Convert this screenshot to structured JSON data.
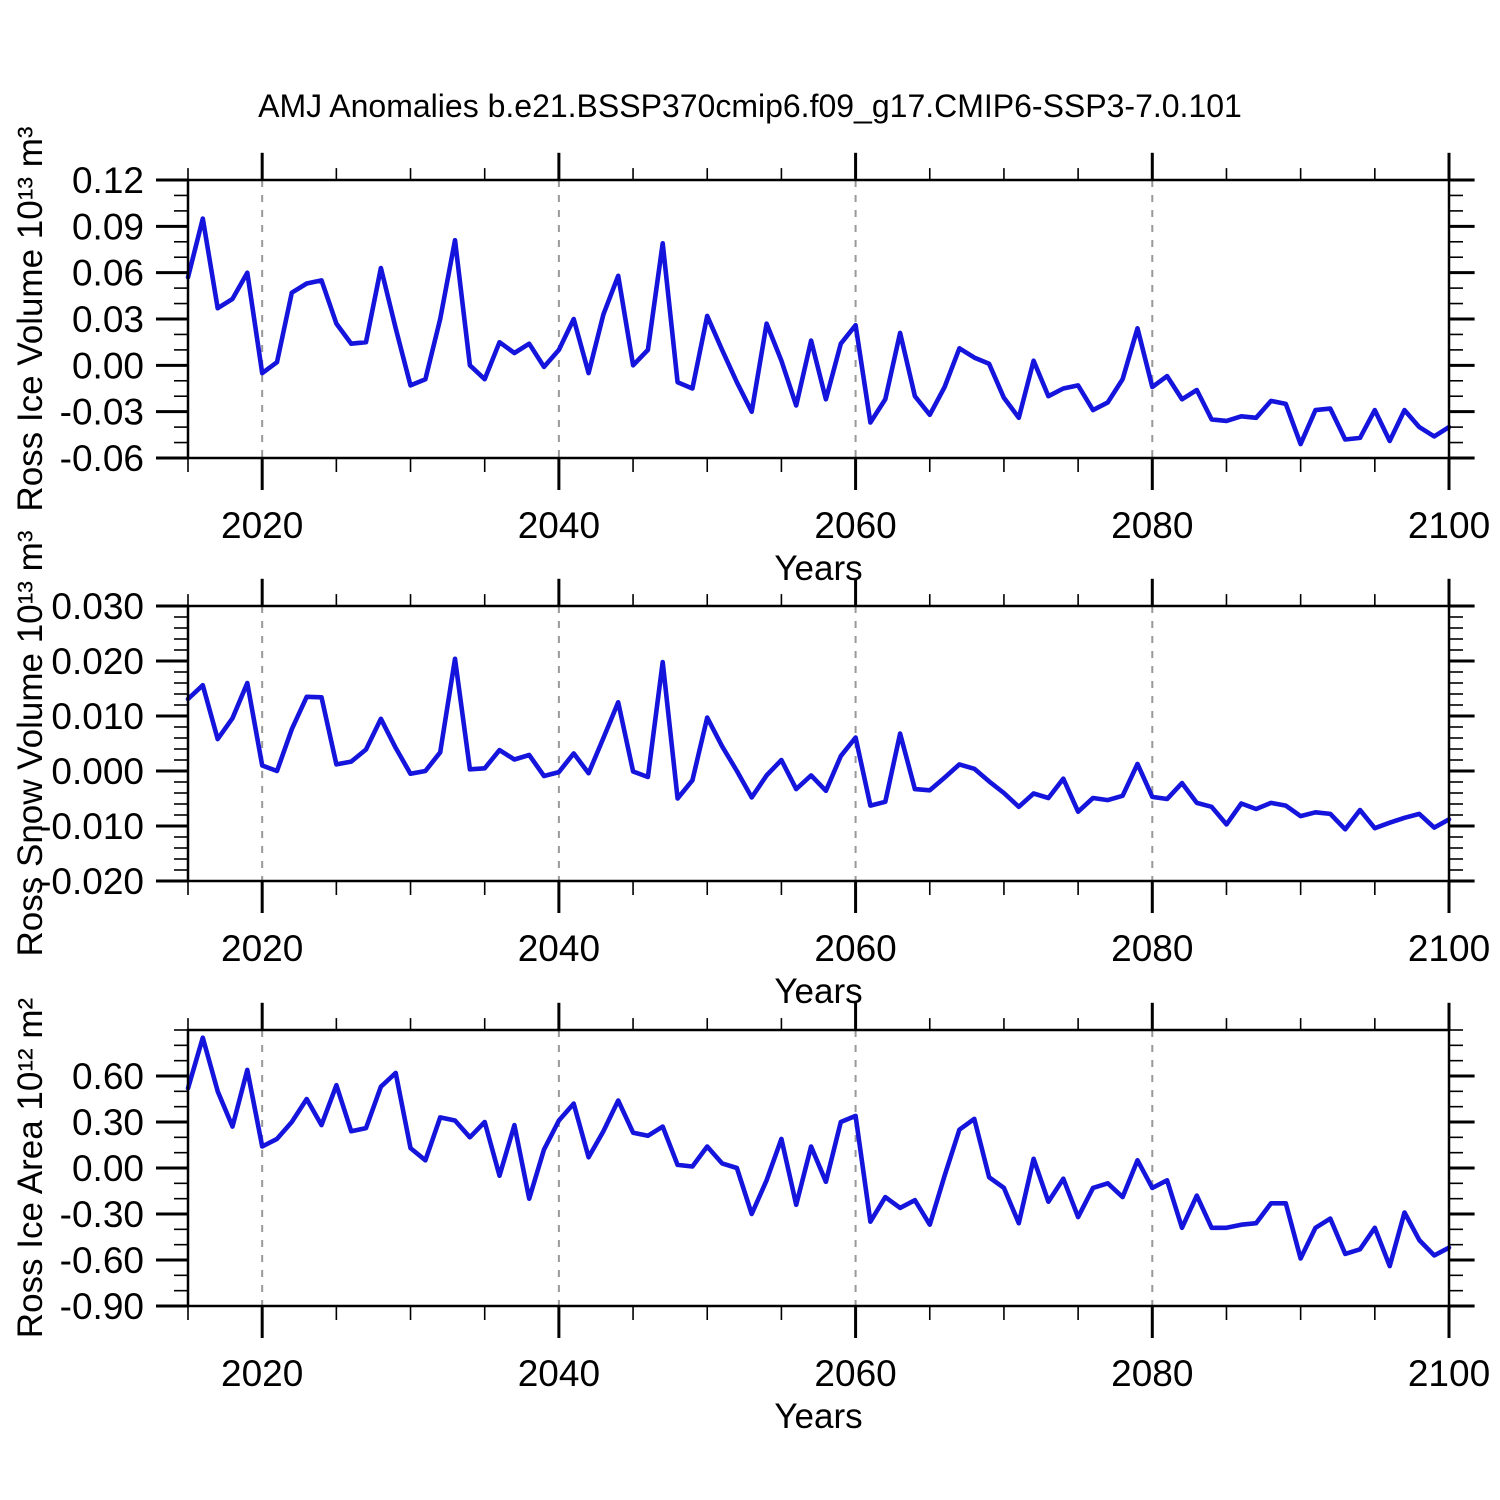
{
  "title": "AMJ Anomalies b.e21.BSSP370cmip6.f09_g17.CMIP6-SSP3-7.0.101",
  "line_color": "#1414dc",
  "grid_color": "#999999",
  "frame_color": "#000000",
  "chart_data": [
    {
      "type": "line",
      "ylabel": "Ross Ice Volume 10¹³ m³",
      "xlabel": "Years",
      "xlim": [
        2015,
        2100
      ],
      "ylim": [
        -0.06,
        0.12
      ],
      "x_major_ticks": [
        2020,
        2040,
        2060,
        2080,
        2100
      ],
      "x_tick_labels": [
        "2020",
        "2040",
        "2060",
        "2080",
        "2100"
      ],
      "x_minor_step": 5,
      "grid_years": [
        2020,
        2040,
        2060,
        2080
      ],
      "y_major_ticks": [
        0.12,
        0.09,
        0.06,
        0.03,
        0.0,
        -0.03,
        -0.06
      ],
      "y_tick_labels": [
        "0.12",
        "0.09",
        "0.06",
        "0.03",
        "0.00",
        "-0.03",
        "-0.06"
      ],
      "y_minor_step": 0.01,
      "grid": "x-dashed",
      "legend": "none",
      "series": [
        {
          "name": "Ross Ice Volume AMJ anomaly",
          "x_start": 2015,
          "x_step": 1,
          "values": [
            0.057,
            0.095,
            0.037,
            0.043,
            0.06,
            -0.005,
            0.002,
            0.047,
            0.053,
            0.055,
            0.027,
            0.014,
            0.015,
            0.063,
            0.024,
            -0.013,
            -0.009,
            0.03,
            0.081,
            0.0,
            -0.009,
            0.015,
            0.008,
            0.014,
            -0.001,
            0.01,
            0.03,
            -0.005,
            0.033,
            0.058,
            0.0,
            0.01,
            0.079,
            -0.011,
            -0.015,
            0.032,
            0.01,
            -0.011,
            -0.03,
            0.027,
            0.003,
            -0.026,
            0.016,
            -0.022,
            0.014,
            0.026,
            -0.037,
            -0.022,
            0.021,
            -0.02,
            -0.032,
            -0.014,
            0.011,
            0.005,
            0.001,
            -0.021,
            -0.034,
            0.003,
            -0.02,
            -0.015,
            -0.013,
            -0.029,
            -0.024,
            -0.009,
            0.024,
            -0.014,
            -0.007,
            -0.022,
            -0.016,
            -0.035,
            -0.036,
            -0.033,
            -0.034,
            -0.023,
            -0.025,
            -0.051,
            -0.029,
            -0.028,
            -0.048,
            -0.047,
            -0.029,
            -0.049,
            -0.029,
            -0.04,
            -0.046,
            -0.04
          ]
        }
      ]
    },
    {
      "type": "line",
      "ylabel": "Ross Snow Volume 10¹³ m³",
      "xlabel": "Years",
      "xlim": [
        2015,
        2100
      ],
      "ylim": [
        -0.02,
        0.03
      ],
      "x_major_ticks": [
        2020,
        2040,
        2060,
        2080,
        2100
      ],
      "x_tick_labels": [
        "2020",
        "2040",
        "2060",
        "2080",
        "2100"
      ],
      "x_minor_step": 5,
      "grid_years": [
        2020,
        2040,
        2060,
        2080
      ],
      "y_major_ticks": [
        0.03,
        0.02,
        0.01,
        0.0,
        -0.01,
        -0.02
      ],
      "y_tick_labels": [
        "0.030",
        "0.020",
        "0.010",
        "0.000",
        "-0.010",
        "-0.020"
      ],
      "y_minor_step": 0.002,
      "grid": "x-dashed",
      "legend": "none",
      "series": [
        {
          "name": "Ross Snow Volume AMJ anomaly",
          "x_start": 2015,
          "x_step": 1,
          "values": [
            0.0131,
            0.0156,
            0.0058,
            0.0096,
            0.016,
            0.001,
            0.0,
            0.0076,
            0.0135,
            0.0134,
            0.0012,
            0.0017,
            0.0039,
            0.0095,
            0.0042,
            -0.0005,
            0.0,
            0.0034,
            0.0204,
            0.0003,
            0.0005,
            0.0038,
            0.0021,
            0.0029,
            -0.0009,
            -0.0002,
            0.0032,
            -0.0004,
            0.006,
            0.0125,
            -0.0001,
            -0.0011,
            0.0198,
            -0.005,
            -0.0017,
            0.0097,
            0.0045,
            0.0,
            -0.0048,
            -0.0008,
            0.002,
            -0.0033,
            -0.0008,
            -0.0036,
            0.0027,
            0.0061,
            -0.0063,
            -0.0056,
            0.0068,
            -0.0033,
            -0.0035,
            -0.0012,
            0.0012,
            0.0004,
            -0.0019,
            -0.004,
            -0.0065,
            -0.0041,
            -0.0049,
            -0.0014,
            -0.0074,
            -0.0049,
            -0.0053,
            -0.0045,
            0.0013,
            -0.0047,
            -0.0051,
            -0.0022,
            -0.0058,
            -0.0065,
            -0.0097,
            -0.0059,
            -0.0069,
            -0.0058,
            -0.0063,
            -0.0082,
            -0.0075,
            -0.0078,
            -0.0106,
            -0.0071,
            -0.0104,
            -0.0094,
            -0.0085,
            -0.0078,
            -0.0103,
            -0.0088
          ]
        }
      ]
    },
    {
      "type": "line",
      "ylabel": "Ross Ice Area 10¹² m²",
      "xlabel": "Years",
      "xlim": [
        2015,
        2100
      ],
      "ylim": [
        -0.9,
        0.9
      ],
      "x_major_ticks": [
        2020,
        2040,
        2060,
        2080,
        2100
      ],
      "x_tick_labels": [
        "2020",
        "2040",
        "2060",
        "2080",
        "2100"
      ],
      "x_minor_step": 5,
      "grid_years": [
        2020,
        2040,
        2060,
        2080
      ],
      "y_major_ticks": [
        0.6,
        0.3,
        0.0,
        -0.3,
        -0.6,
        -0.9
      ],
      "y_tick_labels": [
        "0.60",
        "0.30",
        "0.00",
        "-0.30",
        "-0.60",
        "-0.90"
      ],
      "y_minor_step": 0.1,
      "grid": "x-dashed",
      "legend": "none",
      "series": [
        {
          "name": "Ross Ice Area AMJ anomaly",
          "x_start": 2015,
          "x_step": 1,
          "values": [
            0.52,
            0.85,
            0.5,
            0.27,
            0.64,
            0.14,
            0.19,
            0.3,
            0.45,
            0.28,
            0.54,
            0.24,
            0.26,
            0.53,
            0.62,
            0.13,
            0.05,
            0.33,
            0.31,
            0.2,
            0.3,
            -0.05,
            0.28,
            -0.2,
            0.12,
            0.31,
            0.42,
            0.07,
            0.24,
            0.44,
            0.23,
            0.21,
            0.27,
            0.02,
            0.01,
            0.14,
            0.03,
            0.0,
            -0.3,
            -0.08,
            0.19,
            -0.24,
            0.14,
            -0.09,
            0.3,
            0.34,
            -0.35,
            -0.19,
            -0.26,
            -0.21,
            -0.37,
            -0.05,
            0.25,
            0.32,
            -0.06,
            -0.13,
            -0.36,
            0.06,
            -0.22,
            -0.07,
            -0.32,
            -0.13,
            -0.1,
            -0.19,
            0.05,
            -0.13,
            -0.08,
            -0.39,
            -0.18,
            -0.39,
            -0.39,
            -0.37,
            -0.36,
            -0.23,
            -0.23,
            -0.59,
            -0.39,
            -0.33,
            -0.56,
            -0.53,
            -0.39,
            -0.64,
            -0.29,
            -0.47,
            -0.57,
            -0.52
          ]
        }
      ]
    }
  ]
}
